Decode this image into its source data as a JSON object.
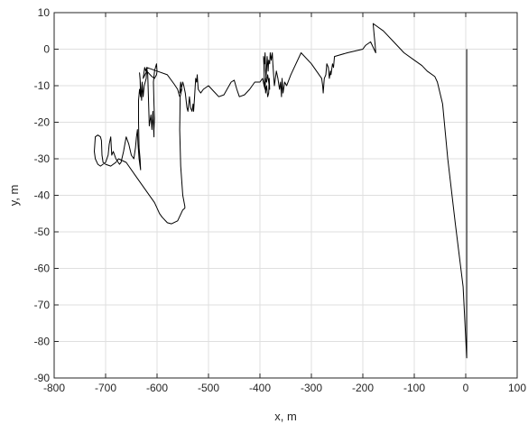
{
  "chart_data": {
    "type": "line",
    "title": "",
    "xlabel": "x, m",
    "ylabel": "y, m",
    "xlim": [
      -800,
      100
    ],
    "ylim": [
      -90,
      10
    ],
    "x_ticks": [
      -800,
      -700,
      -600,
      -500,
      -400,
      -300,
      -200,
      -100,
      0,
      100
    ],
    "y_ticks": [
      -90,
      -80,
      -70,
      -60,
      -50,
      -40,
      -30,
      -20,
      -10,
      0,
      10
    ],
    "grid": true,
    "legend": "none",
    "series": [
      {
        "color": "#000000",
        "points": [
          [
            2,
            0
          ],
          [
            2,
            -84.5
          ],
          [
            -5,
            -65
          ],
          [
            -20,
            -48
          ],
          [
            -35,
            -30
          ],
          [
            -45,
            -15
          ],
          [
            -55,
            -9
          ],
          [
            -60,
            -7.5
          ],
          [
            -75,
            -6
          ],
          [
            -85,
            -4.5
          ],
          [
            -100,
            -3
          ],
          [
            -120,
            -1
          ],
          [
            -140,
            2
          ],
          [
            -160,
            5
          ],
          [
            -180,
            7
          ],
          [
            -178,
            4
          ],
          [
            -176,
            1
          ],
          [
            -175,
            -1
          ],
          [
            -185,
            2
          ],
          [
            -195,
            1
          ],
          [
            -200,
            0
          ],
          [
            -230,
            -1
          ],
          [
            -255,
            -2
          ],
          [
            -257,
            -5
          ],
          [
            -259,
            -4
          ],
          [
            -262,
            -7
          ],
          [
            -263,
            -6
          ],
          [
            -265,
            -8
          ],
          [
            -267,
            -5
          ],
          [
            -270,
            -4
          ],
          [
            -272,
            -7
          ],
          [
            -275,
            -8
          ],
          [
            -277,
            -12
          ],
          [
            -278,
            -10
          ],
          [
            -280,
            -8
          ],
          [
            -300,
            -4
          ],
          [
            -320,
            -1
          ],
          [
            -340,
            -7
          ],
          [
            -348,
            -10
          ],
          [
            -352,
            -9
          ],
          [
            -355,
            -12
          ],
          [
            -357,
            -8
          ],
          [
            -358,
            -13
          ],
          [
            -360,
            -9
          ],
          [
            -362,
            -11
          ],
          [
            -365,
            -8
          ],
          [
            -368,
            -6
          ],
          [
            -370,
            -8
          ],
          [
            -372,
            -10
          ],
          [
            -375,
            -4
          ],
          [
            -376,
            -1
          ],
          [
            -378,
            -3
          ],
          [
            -380,
            -1
          ],
          [
            -381,
            -4
          ],
          [
            -383,
            -3
          ],
          [
            -384,
            -6
          ],
          [
            -386,
            -2
          ],
          [
            -387,
            -5
          ],
          [
            -388,
            -8
          ],
          [
            -389,
            -6
          ],
          [
            -390,
            -1
          ],
          [
            -391,
            -4
          ],
          [
            -392,
            -3
          ],
          [
            -393,
            -2
          ],
          [
            -392,
            -6
          ],
          [
            -391,
            -10
          ],
          [
            -390,
            -9
          ],
          [
            -389,
            -12
          ],
          [
            -388,
            -11
          ],
          [
            -387,
            -10
          ],
          [
            -385,
            -13
          ],
          [
            -383,
            -12
          ],
          [
            -382,
            -8
          ],
          [
            -381,
            -11
          ],
          [
            -383,
            -9
          ],
          [
            -385,
            -7
          ],
          [
            -387,
            -9
          ],
          [
            -389,
            -8
          ],
          [
            -390,
            -11
          ],
          [
            -392,
            -10
          ],
          [
            -395,
            -8
          ],
          [
            -400,
            -9
          ],
          [
            -410,
            -9
          ],
          [
            -420,
            -11
          ],
          [
            -430,
            -12.5
          ],
          [
            -440,
            -13
          ],
          [
            -445,
            -11
          ],
          [
            -450,
            -8.5
          ],
          [
            -456,
            -9
          ],
          [
            -460,
            -10
          ],
          [
            -470,
            -12.5
          ],
          [
            -480,
            -13
          ],
          [
            -490,
            -11.5
          ],
          [
            -500,
            -10
          ],
          [
            -510,
            -11
          ],
          [
            -515,
            -12
          ],
          [
            -520,
            -11
          ],
          [
            -522,
            -7
          ],
          [
            -523,
            -9
          ],
          [
            -525,
            -8
          ],
          [
            -527,
            -13
          ],
          [
            -529,
            -17
          ],
          [
            -530,
            -15
          ],
          [
            -532,
            -17
          ],
          [
            -535,
            -16
          ],
          [
            -537,
            -13
          ],
          [
            -540,
            -17
          ],
          [
            -542,
            -16
          ],
          [
            -545,
            -12
          ],
          [
            -548,
            -10
          ],
          [
            -550,
            -9
          ],
          [
            -553,
            -11
          ],
          [
            -556,
            -12
          ],
          [
            -554,
            -9
          ],
          [
            -552,
            -11
          ],
          [
            -555,
            -13
          ],
          [
            -556,
            -22
          ],
          [
            -554,
            -32
          ],
          [
            -550,
            -40
          ],
          [
            -546,
            -43
          ],
          [
            -546,
            -43.5
          ],
          [
            -550,
            -44
          ],
          [
            -560,
            -47
          ],
          [
            -572,
            -47.8
          ],
          [
            -580,
            -47.5
          ],
          [
            -590,
            -46
          ],
          [
            -595,
            -45
          ],
          [
            -605,
            -42
          ],
          [
            -620,
            -39
          ],
          [
            -640,
            -35
          ],
          [
            -660,
            -31
          ],
          [
            -675,
            -30
          ],
          [
            -680,
            -31
          ],
          [
            -690,
            -32
          ],
          [
            -700,
            -31.5
          ],
          [
            -705,
            -31
          ],
          [
            -707,
            -29
          ],
          [
            -708,
            -25
          ],
          [
            -710,
            -24
          ],
          [
            -715,
            -23.5
          ],
          [
            -720,
            -24
          ],
          [
            -722,
            -28
          ],
          [
            -720,
            -30
          ],
          [
            -715,
            -31.5
          ],
          [
            -710,
            -32
          ],
          [
            -700,
            -31
          ],
          [
            -695,
            -29
          ],
          [
            -693,
            -26
          ],
          [
            -690,
            -24
          ],
          [
            -688,
            -29
          ],
          [
            -685,
            -28
          ],
          [
            -680,
            -30
          ],
          [
            -673,
            -31.5
          ],
          [
            -670,
            -31
          ],
          [
            -665,
            -28
          ],
          [
            -660,
            -24
          ],
          [
            -655,
            -26
          ],
          [
            -650,
            -29
          ],
          [
            -645,
            -30
          ],
          [
            -642,
            -27
          ],
          [
            -640,
            -24
          ],
          [
            -638,
            -22
          ],
          [
            -637,
            -26
          ],
          [
            -635,
            -30
          ],
          [
            -633,
            -32
          ],
          [
            -632,
            -33
          ],
          [
            -633,
            -30
          ],
          [
            -635,
            -27
          ],
          [
            -636,
            -20
          ],
          [
            -636,
            -14
          ],
          [
            -634,
            -11
          ],
          [
            -632,
            -13
          ],
          [
            -633,
            -8
          ],
          [
            -634,
            -6.5
          ],
          [
            -632,
            -10
          ],
          [
            -630,
            -14
          ],
          [
            -629,
            -9
          ],
          [
            -627,
            -13
          ],
          [
            -625,
            -10
          ],
          [
            -623,
            -9
          ],
          [
            -621,
            -8
          ],
          [
            -620,
            -5
          ],
          [
            -618,
            -7
          ],
          [
            -615,
            -21
          ],
          [
            -612,
            -18
          ],
          [
            -610,
            -22
          ],
          [
            -608,
            -17
          ],
          [
            -606,
            -24
          ],
          [
            -606,
            -22
          ],
          [
            -605,
            -19
          ],
          [
            -606,
            -15
          ],
          [
            -607,
            -9
          ],
          [
            -605,
            -6
          ],
          [
            -603,
            -5
          ],
          [
            -601,
            -4
          ],
          [
            -600,
            -6
          ],
          [
            -601,
            -7
          ],
          [
            -605,
            -8
          ],
          [
            -610,
            -7.5
          ],
          [
            -620,
            -6
          ],
          [
            -627,
            -8
          ],
          [
            -624,
            -5
          ],
          [
            -622,
            -6
          ],
          [
            -620,
            -5
          ],
          [
            -600,
            -6
          ],
          [
            -580,
            -7
          ],
          [
            -567,
            -9.5
          ],
          [
            -560,
            -11
          ],
          [
            -556,
            -13
          ]
        ]
      }
    ]
  }
}
